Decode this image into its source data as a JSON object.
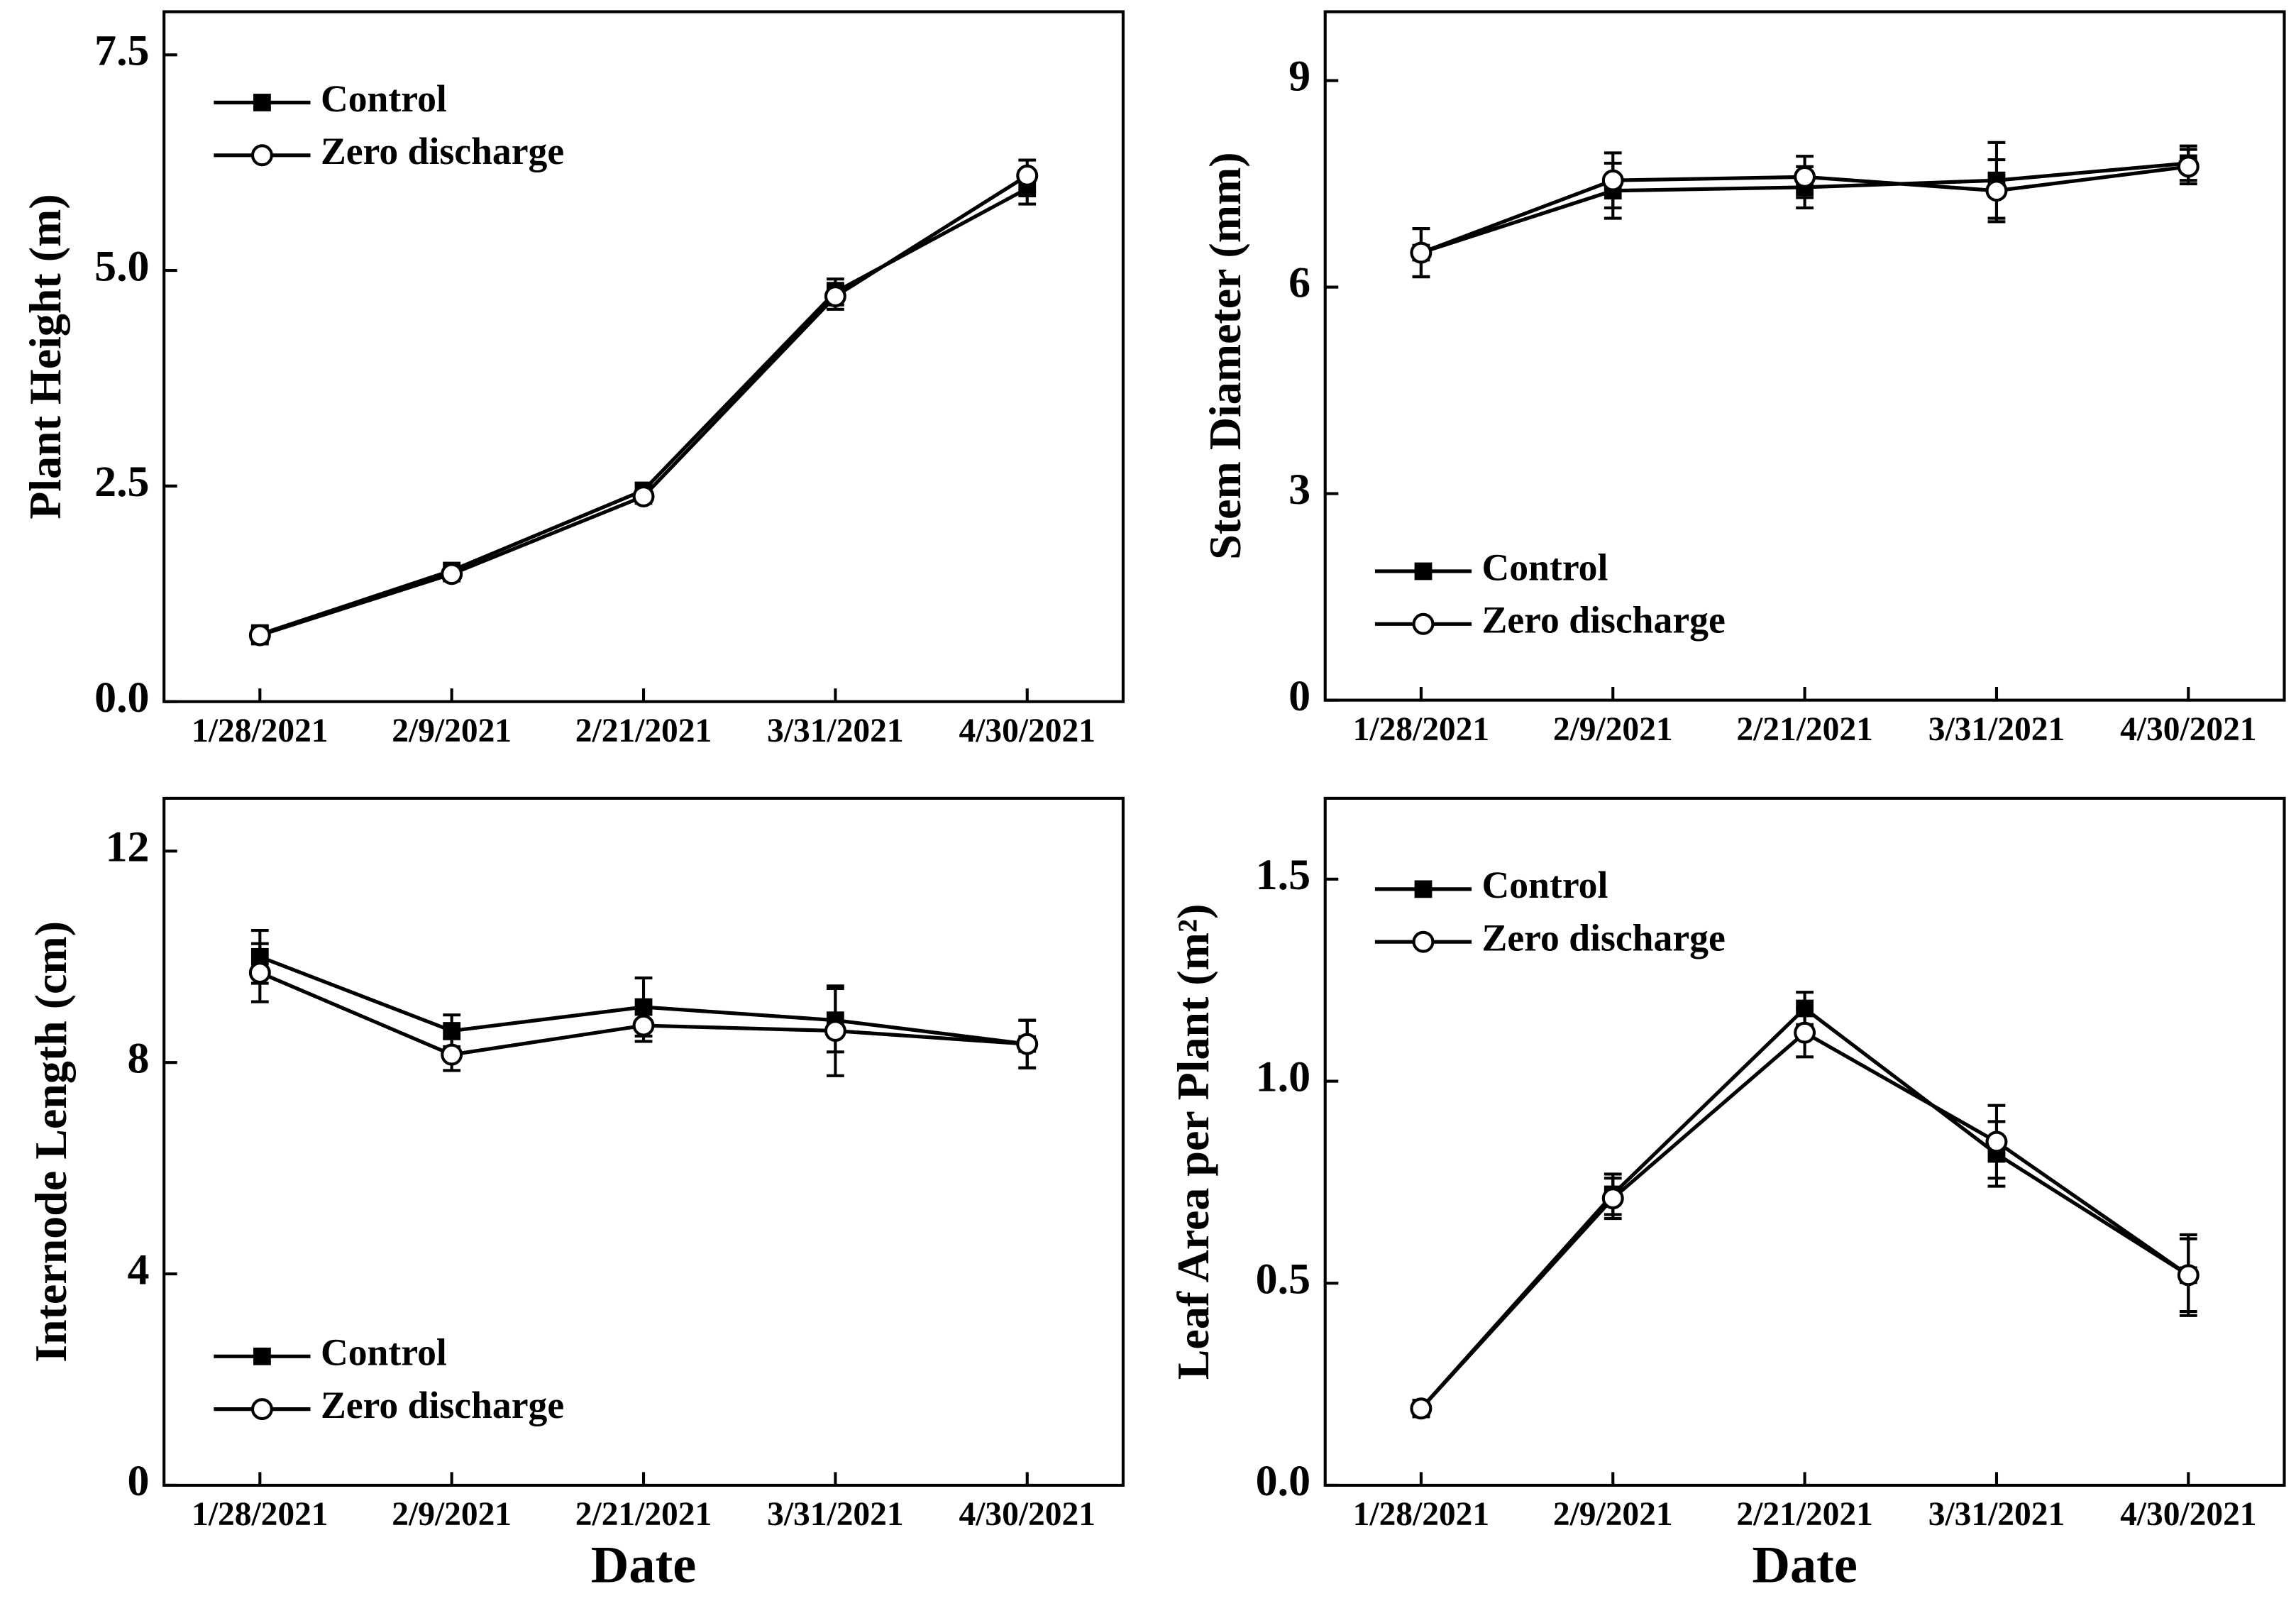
{
  "chart_data": [
    {
      "type": "line",
      "ylabel": "Plant Height (m)",
      "categories": [
        "1/28/2021",
        "2/9/2021",
        "2/21/2021",
        "3/31/2021",
        "4/30/2021"
      ],
      "series": [
        {
          "name": "Control",
          "color": "#000000",
          "marker": "square",
          "values": [
            0.78,
            1.52,
            2.45,
            4.75,
            5.95
          ],
          "errors": [
            0.1,
            0.08,
            0.08,
            0.15,
            0.18
          ]
        },
        {
          "name": "Zero discharge",
          "color": "#000000",
          "marker": "circle",
          "values": [
            0.77,
            1.48,
            2.38,
            4.7,
            6.1
          ],
          "errors": [
            0.1,
            0.08,
            0.08,
            0.15,
            0.18
          ]
        }
      ],
      "ylim": [
        0,
        8
      ],
      "yticks": [
        {
          "value": 0,
          "label": "0.0"
        },
        2.5,
        {
          "value": 5,
          "label": "5.0"
        },
        7.5
      ],
      "legend": "upper left"
    },
    {
      "type": "line",
      "ylabel": "Stem Diameter (mm)",
      "categories": [
        "1/28/2021",
        "2/9/2021",
        "2/21/2021",
        "3/31/2021",
        "4/30/2021"
      ],
      "series": [
        {
          "name": "Control",
          "color": "#000000",
          "marker": "square",
          "values": [
            6.5,
            7.4,
            7.45,
            7.55,
            7.8
          ],
          "errors": [
            0.35,
            0.4,
            0.3,
            0.55,
            0.25
          ]
        },
        {
          "name": "Zero discharge",
          "color": "#000000",
          "marker": "circle",
          "values": [
            6.5,
            7.55,
            7.6,
            7.4,
            7.75
          ],
          "errors": [
            0.35,
            0.4,
            0.3,
            0.45,
            0.25
          ]
        }
      ],
      "ylim": [
        0,
        10
      ],
      "yticks": [
        0,
        3,
        6,
        9
      ],
      "legend": "lower left"
    },
    {
      "type": "line",
      "ylabel": "Internode Length (cm)",
      "xlabel": "Date",
      "categories": [
        "1/28/2021",
        "2/9/2021",
        "2/21/2021",
        "3/31/2021",
        "4/30/2021"
      ],
      "series": [
        {
          "name": "Control",
          "color": "#000000",
          "marker": "square",
          "values": [
            10.0,
            8.6,
            9.05,
            8.8,
            8.35
          ],
          "errors": [
            0.5,
            0.3,
            0.55,
            0.6,
            0.45
          ]
        },
        {
          "name": "Zero discharge",
          "color": "#000000",
          "marker": "circle",
          "values": [
            9.7,
            8.15,
            8.7,
            8.6,
            8.35
          ],
          "errors": [
            0.55,
            0.3,
            0.3,
            0.85,
            0.45
          ]
        }
      ],
      "ylim": [
        0,
        13
      ],
      "yticks": [
        0,
        4,
        8,
        12
      ],
      "legend": "lower left"
    },
    {
      "type": "line",
      "ylabel": "Leaf Area per Plant (m²)",
      "xlabel": "Date",
      "categories": [
        "1/28/2021",
        "2/9/2021",
        "2/21/2021",
        "3/31/2021",
        "4/30/2021"
      ],
      "series": [
        {
          "name": "Control",
          "color": "#000000",
          "marker": "square",
          "values": [
            0.19,
            0.72,
            1.18,
            0.82,
            0.52
          ],
          "errors": [
            0.02,
            0.05,
            0.04,
            0.08,
            0.09
          ]
        },
        {
          "name": "Zero discharge",
          "color": "#000000",
          "marker": "circle",
          "values": [
            0.19,
            0.71,
            1.12,
            0.85,
            0.52
          ],
          "errors": [
            0.02,
            0.05,
            0.06,
            0.09,
            0.1
          ]
        }
      ],
      "ylim": [
        0,
        1.7
      ],
      "yticks": [
        {
          "value": 0,
          "label": "0.0"
        },
        0.5,
        {
          "value": 1,
          "label": "1.0"
        },
        1.5
      ],
      "legend": "upper left"
    }
  ]
}
